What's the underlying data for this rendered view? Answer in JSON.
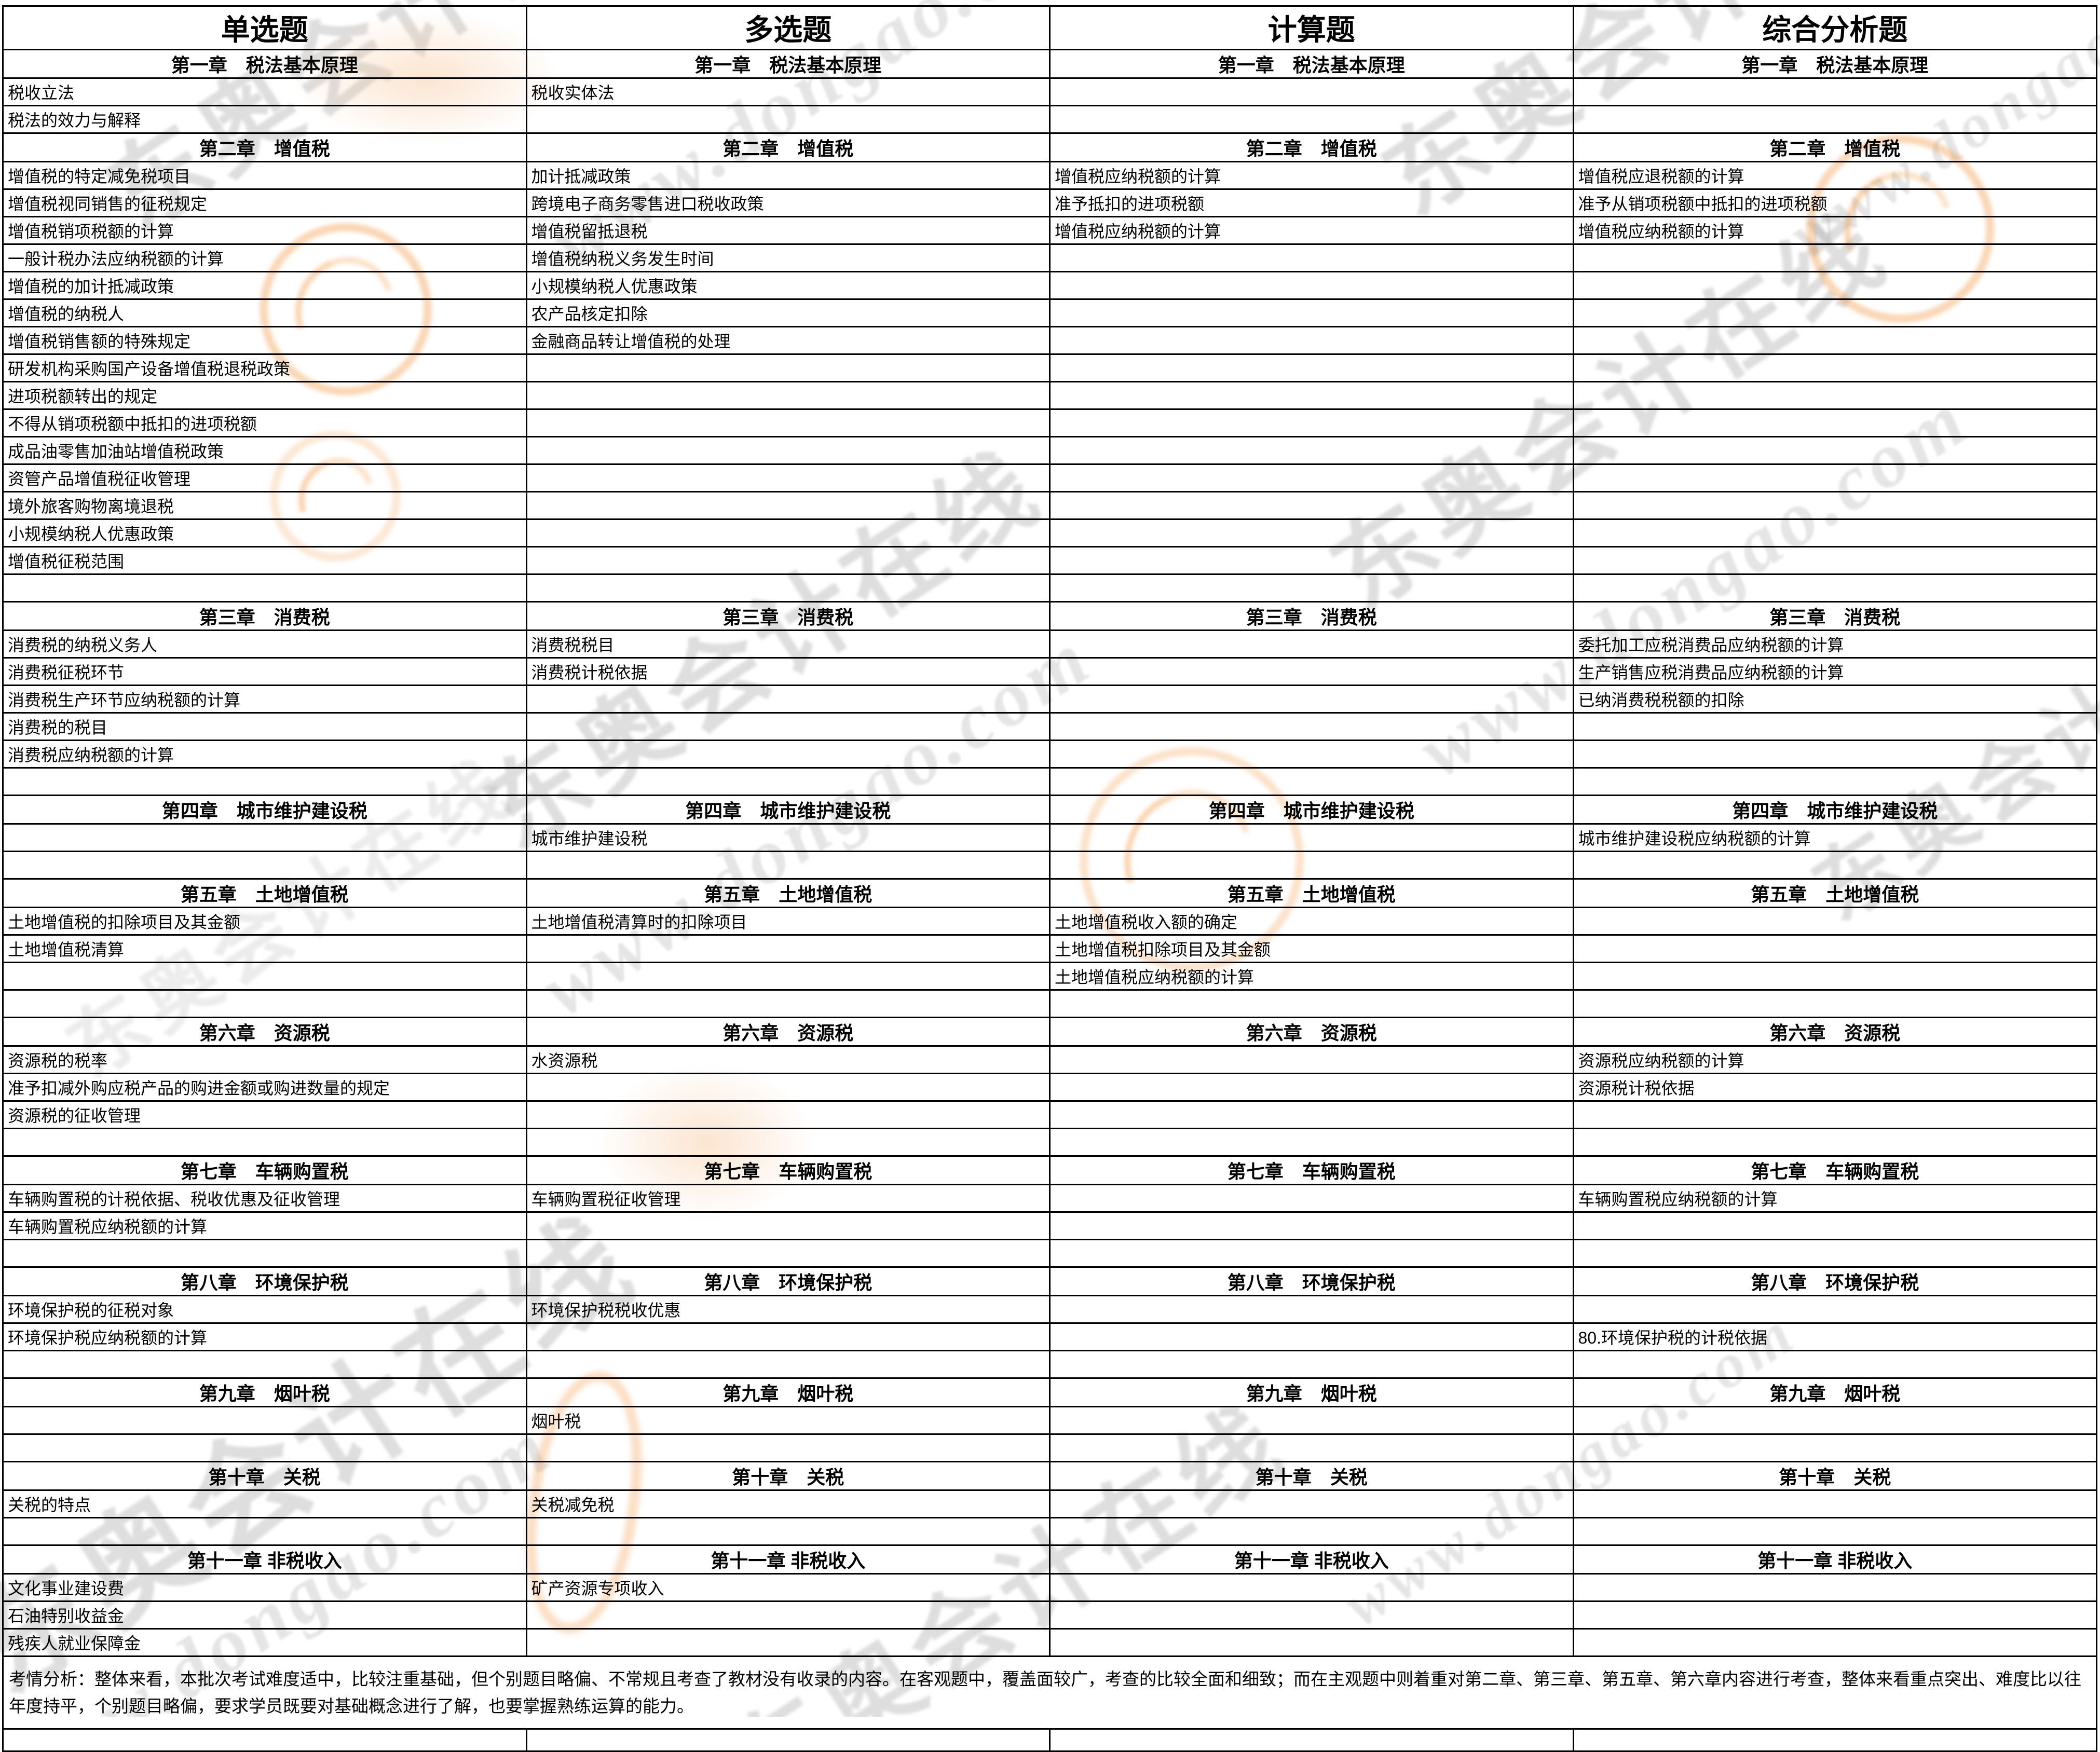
{
  "header": {
    "columns": [
      "单选题",
      "多选题",
      "计算题",
      "综合分析题"
    ]
  },
  "rows": [
    {
      "type": "chapter",
      "label": "第一章　税法基本原理"
    },
    {
      "type": "item",
      "cells": [
        "税收立法",
        "税收实体法",
        "",
        ""
      ]
    },
    {
      "type": "item",
      "cells": [
        "税法的效力与解释",
        "",
        "",
        ""
      ]
    },
    {
      "type": "chapter",
      "label": "第二章　增值税"
    },
    {
      "type": "item",
      "cells": [
        "增值税的特定减免税项目",
        "加计抵减政策",
        "增值税应纳税额的计算",
        "增值税应退税额的计算"
      ]
    },
    {
      "type": "item",
      "cells": [
        "增值税视同销售的征税规定",
        "跨境电子商务零售进口税收政策",
        "准予抵扣的进项税额",
        "准予从销项税额中抵扣的进项税额"
      ]
    },
    {
      "type": "item",
      "cells": [
        "增值税销项税额的计算",
        "增值税留抵退税",
        "增值税应纳税额的计算",
        "增值税应纳税额的计算"
      ]
    },
    {
      "type": "item",
      "cells": [
        "一般计税办法应纳税额的计算",
        "增值税纳税义务发生时间",
        "",
        ""
      ]
    },
    {
      "type": "item",
      "cells": [
        "增值税的加计抵减政策",
        "小规模纳税人优惠政策",
        "",
        ""
      ]
    },
    {
      "type": "item",
      "cells": [
        "增值税的纳税人",
        "农产品核定扣除",
        "",
        ""
      ]
    },
    {
      "type": "item",
      "cells": [
        "增值税销售额的特殊规定",
        "金融商品转让增值税的处理",
        "",
        ""
      ]
    },
    {
      "type": "item",
      "cells": [
        "研发机构采购国产设备增值税退税政策",
        "",
        "",
        ""
      ]
    },
    {
      "type": "item",
      "cells": [
        "进项税额转出的规定",
        "",
        "",
        ""
      ]
    },
    {
      "type": "item",
      "cells": [
        "不得从销项税额中抵扣的进项税额",
        "",
        "",
        ""
      ]
    },
    {
      "type": "item",
      "cells": [
        "成品油零售加油站增值税政策",
        "",
        "",
        ""
      ]
    },
    {
      "type": "item",
      "cells": [
        "资管产品增值税征收管理",
        "",
        "",
        ""
      ]
    },
    {
      "type": "item",
      "cells": [
        "境外旅客购物离境退税",
        "",
        "",
        ""
      ]
    },
    {
      "type": "item",
      "cells": [
        "小规模纳税人优惠政策",
        "",
        "",
        ""
      ]
    },
    {
      "type": "item",
      "cells": [
        "增值税征税范围",
        "",
        "",
        ""
      ]
    },
    {
      "type": "item",
      "cells": [
        "",
        "",
        "",
        ""
      ]
    },
    {
      "type": "chapter",
      "label": "第三章　消费税"
    },
    {
      "type": "item",
      "cells": [
        "消费税的纳税义务人",
        "消费税税目",
        "",
        "委托加工应税消费品应纳税额的计算"
      ]
    },
    {
      "type": "item",
      "cells": [
        "消费税征税环节",
        "消费税计税依据",
        "",
        "生产销售应税消费品应纳税额的计算"
      ]
    },
    {
      "type": "item",
      "cells": [
        "消费税生产环节应纳税额的计算",
        "",
        "",
        "已纳消费税税额的扣除"
      ]
    },
    {
      "type": "item",
      "cells": [
        "消费税的税目",
        "",
        "",
        ""
      ]
    },
    {
      "type": "item",
      "cells": [
        "消费税应纳税额的计算",
        "",
        "",
        ""
      ]
    },
    {
      "type": "item",
      "cells": [
        "",
        "",
        "",
        ""
      ]
    },
    {
      "type": "chapter",
      "label": "第四章　城市维护建设税"
    },
    {
      "type": "item",
      "cells": [
        "",
        "城市维护建设税",
        "",
        "城市维护建设税应纳税额的计算"
      ]
    },
    {
      "type": "item",
      "cells": [
        "",
        "",
        "",
        ""
      ]
    },
    {
      "type": "chapter",
      "label": "第五章　土地增值税"
    },
    {
      "type": "item",
      "cells": [
        "土地增值税的扣除项目及其金额",
        "土地增值税清算时的扣除项目",
        "土地增值税收入额的确定",
        ""
      ]
    },
    {
      "type": "item",
      "cells": [
        "土地增值税清算",
        "",
        "土地增值税扣除项目及其金额",
        ""
      ]
    },
    {
      "type": "item",
      "cells": [
        "",
        "",
        "土地增值税应纳税额的计算",
        ""
      ]
    },
    {
      "type": "item",
      "cells": [
        "",
        "",
        "",
        ""
      ]
    },
    {
      "type": "chapter",
      "label": "第六章　资源税"
    },
    {
      "type": "item",
      "cells": [
        "资源税的税率",
        "水资源税",
        "",
        "资源税应纳税额的计算"
      ]
    },
    {
      "type": "item",
      "cells": [
        "准予扣减外购应税产品的购进金额或购进数量的规定",
        "",
        "",
        "资源税计税依据"
      ]
    },
    {
      "type": "item",
      "cells": [
        "资源税的征收管理",
        "",
        "",
        ""
      ]
    },
    {
      "type": "item",
      "cells": [
        "",
        "",
        "",
        ""
      ]
    },
    {
      "type": "chapter",
      "label": "第七章　车辆购置税"
    },
    {
      "type": "item",
      "cells": [
        "车辆购置税的计税依据、税收优惠及征收管理",
        "车辆购置税征收管理",
        "",
        "车辆购置税应纳税额的计算"
      ]
    },
    {
      "type": "item",
      "cells": [
        "车辆购置税应纳税额的计算",
        "",
        "",
        ""
      ]
    },
    {
      "type": "item",
      "cells": [
        "",
        "",
        "",
        ""
      ]
    },
    {
      "type": "chapter",
      "label": "第八章　环境保护税"
    },
    {
      "type": "item",
      "cells": [
        "环境保护税的征税对象",
        "环境保护税税收优惠",
        "",
        ""
      ]
    },
    {
      "type": "item",
      "cells": [
        "环境保护税应纳税额的计算",
        "",
        "",
        "80.环境保护税的计税依据"
      ]
    },
    {
      "type": "item",
      "cells": [
        "",
        "",
        "",
        ""
      ]
    },
    {
      "type": "chapter",
      "label": "第九章　烟叶税"
    },
    {
      "type": "item",
      "cells": [
        "",
        "烟叶税",
        "",
        ""
      ]
    },
    {
      "type": "item",
      "cells": [
        "",
        "",
        "",
        ""
      ]
    },
    {
      "type": "chapter",
      "label": "第十章　关税"
    },
    {
      "type": "item",
      "cells": [
        "关税的特点",
        "关税减免税",
        "",
        ""
      ]
    },
    {
      "type": "item",
      "cells": [
        "",
        "",
        "",
        ""
      ]
    },
    {
      "type": "chapter",
      "label": "第十一章 非税收入"
    },
    {
      "type": "item",
      "cells": [
        "文化事业建设费",
        "矿产资源专项收入",
        "",
        ""
      ]
    },
    {
      "type": "item",
      "cells": [
        "石油特别收益金",
        "",
        "",
        ""
      ]
    },
    {
      "type": "item",
      "cells": [
        "残疾人就业保障金",
        "",
        "",
        ""
      ]
    }
  ],
  "footer": {
    "analysis": "考情分析：整体来看，本批次考试难度适中，比较注重基础，但个别题目略偏、不常规且考查了教材没有收录的内容。在客观题中，覆盖面较广，考查的比较全面和细致；而在主观题中则着重对第二章、第三章、第五章、第六章内容进行考查，整体来看重点突出、难度比以往年度持平，个别题目略偏，要求学员既要对基础概念进行了解，也要掌握熟练运算的能力。"
  },
  "watermark": {
    "brand": "东奥会计在线",
    "url": "www.dongao.com"
  },
  "colors": {
    "column_header_bg": "#ffff00",
    "border": "#000000",
    "text": "#000000",
    "watermark_orange": "#f3963f",
    "watermark_gray": "#919191"
  }
}
